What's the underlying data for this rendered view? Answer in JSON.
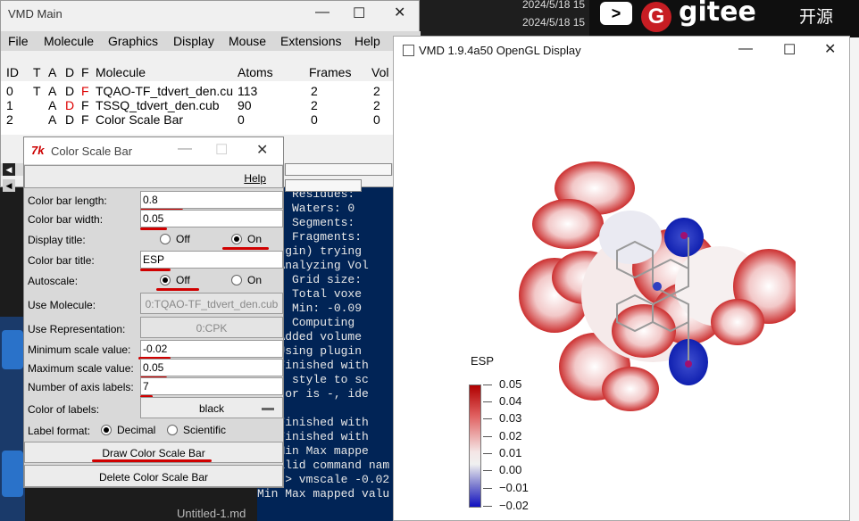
{
  "desktop": {
    "timestamps": [
      "2024/5/18 15",
      "2024/5/18 15"
    ],
    "gitee_arrow": ">",
    "gitee_logo_letter": "G",
    "gitee_text": "gitee",
    "gitee_cn": "开源",
    "untitled_tab": "Untitled-1.md"
  },
  "vmd_main": {
    "title": "VMD Main",
    "menu": [
      "File",
      "Molecule",
      "Graphics",
      "Display",
      "Mouse",
      "Extensions",
      "Help"
    ],
    "columns": [
      "ID",
      "T",
      "A",
      "D",
      "F",
      "Molecule",
      "Atoms",
      "Frames",
      "Vol"
    ],
    "molecules": [
      {
        "id": "0",
        "t": "T",
        "a": "A",
        "d": "D",
        "f": "F",
        "name": "TQAO-TF_tdvert_den.cu",
        "atoms": "113",
        "frames": "2",
        "vol": "2"
      },
      {
        "id": "1",
        "t": "",
        "a": "A",
        "d": "D",
        "f": "F",
        "name": "TSSQ_tdvert_den.cub",
        "atoms": "90",
        "frames": "2",
        "vol": "2"
      },
      {
        "id": "2",
        "t": "",
        "a": "A",
        "d": "D",
        "f": "F",
        "name": "Color Scale Bar",
        "atoms": "0",
        "frames": "0",
        "vol": "0"
      }
    ]
  },
  "console": {
    "lines": [
      "o)   Residues:",
      "o)   Waters: 0",
      "o)   Segments:",
      "o)   Fragments:",
      "eplugin) trying",
      "o) Analyzing Vol",
      "o)   Grid size:",
      "o)   Total voxe",
      "o)   Min: -0.09",
      "o)   Computing",
      "o) Added volume",
      "o) Using plugin",
      "o) Finished with",
      " set style to sc",
      "arator is -, ide",
      "o)",
      "o) Finished with",
      "o) Finished with",
      " > Min Max mappe",
      "invalid command nam",
      "vmd > vmscale -0.02",
      "Min Max mapped valu"
    ]
  },
  "color_scale_bar": {
    "title": "Color Scale Bar",
    "help_label": "Help",
    "fields": {
      "length_label": "Color bar length:",
      "length": "0.8",
      "width_label": "Color bar width:",
      "width": "0.05",
      "display_title_label": "Display title:",
      "off": "Off",
      "on": "On",
      "title_label": "Color bar title:",
      "title_value": "ESP",
      "autoscale_label": "Autoscale:",
      "use_molecule_label": "Use Molecule:",
      "use_molecule": "0:TQAO-TF_tdvert_den.cub",
      "use_rep_label": "Use Representation:",
      "use_rep": "0:CPK",
      "min_label": "Minimum scale value:",
      "min": "-0.02",
      "max_label": "Maximum scale value:",
      "max": "0.05",
      "axis_labels_label": "Number of axis labels:",
      "axis_labels": "7",
      "color_labels_label": "Color of labels:",
      "color_labels": "black",
      "format_label": "Label format:",
      "decimal": "Decimal",
      "scientific": "Scientific"
    },
    "draw_button": "Draw Color Scale Bar",
    "delete_button": "Delete Color Scale Bar"
  },
  "gl_display": {
    "title": "VMD 1.9.4a50 OpenGL Display",
    "legend_title": "ESP",
    "ticks": [
      "0.05",
      "0.04",
      "0.03",
      "0.02",
      "0.01",
      "0.00",
      "−0.01",
      "−0.02"
    ]
  }
}
